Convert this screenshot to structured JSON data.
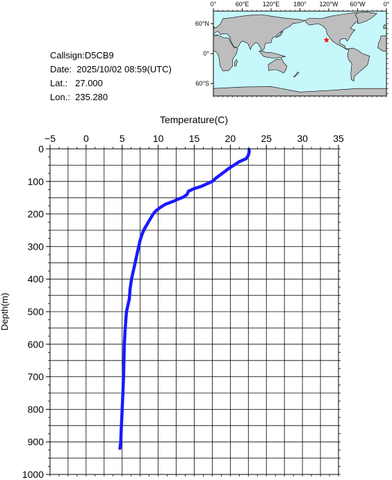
{
  "info": {
    "callsign": "Callsign:D5CB9",
    "date": "Date:  2025/10/02 08:59(UTC)",
    "lat": "Lat.:   27.000",
    "lon": "Lon.:  235.280"
  },
  "map": {
    "lon_labels": [
      "0°",
      "60°E",
      "120°E",
      "180°",
      "120°W",
      "60°W",
      "0°"
    ],
    "lat_labels": [
      "60°N",
      "0°",
      "60°S"
    ],
    "ocean_color": "#c6f7fb",
    "land_color": "#bdbdbd",
    "marker": {
      "lon": 235.28,
      "lat": 27.0,
      "symbol": "star",
      "color": "#ff0000"
    }
  },
  "chart_data": {
    "type": "line",
    "title": "",
    "xlabel": "Temperature(C)",
    "ylabel": "Depth(m)",
    "xlim": [
      -5,
      35
    ],
    "ylim": [
      0,
      1000
    ],
    "x_axis_position": "top",
    "y_inverted": true,
    "grid": true,
    "x_ticks": [
      -5,
      0,
      5,
      10,
      15,
      20,
      25,
      30,
      35
    ],
    "y_ticks": [
      0,
      100,
      200,
      300,
      400,
      500,
      600,
      700,
      800,
      900,
      1000
    ],
    "line_color": "#1a1aff",
    "series": [
      {
        "name": "",
        "points": [
          [
            22.6,
            2
          ],
          [
            22.6,
            10
          ],
          [
            22.5,
            20
          ],
          [
            22.2,
            30
          ],
          [
            21.2,
            40
          ],
          [
            20.5,
            50
          ],
          [
            19.8,
            60
          ],
          [
            19.2,
            70
          ],
          [
            18.6,
            80
          ],
          [
            18.0,
            90
          ],
          [
            17.5,
            100
          ],
          [
            17.0,
            105
          ],
          [
            16.0,
            115
          ],
          [
            15.0,
            122
          ],
          [
            14.5,
            127
          ],
          [
            14.2,
            130
          ],
          [
            14.0,
            140
          ],
          [
            13.5,
            148
          ],
          [
            12.7,
            155
          ],
          [
            12.0,
            162
          ],
          [
            11.0,
            170
          ],
          [
            10.3,
            180
          ],
          [
            9.7,
            190
          ],
          [
            9.3,
            200
          ],
          [
            8.9,
            215
          ],
          [
            8.5,
            230
          ],
          [
            8.1,
            245
          ],
          [
            7.8,
            260
          ],
          [
            7.5,
            280
          ],
          [
            7.3,
            300
          ],
          [
            7.0,
            330
          ],
          [
            6.7,
            360
          ],
          [
            6.5,
            380
          ],
          [
            6.3,
            400
          ],
          [
            6.1,
            430
          ],
          [
            6.0,
            460
          ],
          [
            5.8,
            480
          ],
          [
            5.6,
            500
          ],
          [
            5.5,
            530
          ],
          [
            5.4,
            560
          ],
          [
            5.3,
            600
          ],
          [
            5.25,
            650
          ],
          [
            5.2,
            700
          ],
          [
            5.1,
            750
          ],
          [
            5.0,
            800
          ],
          [
            4.9,
            850
          ],
          [
            4.8,
            900
          ],
          [
            4.7,
            920
          ]
        ]
      }
    ]
  }
}
